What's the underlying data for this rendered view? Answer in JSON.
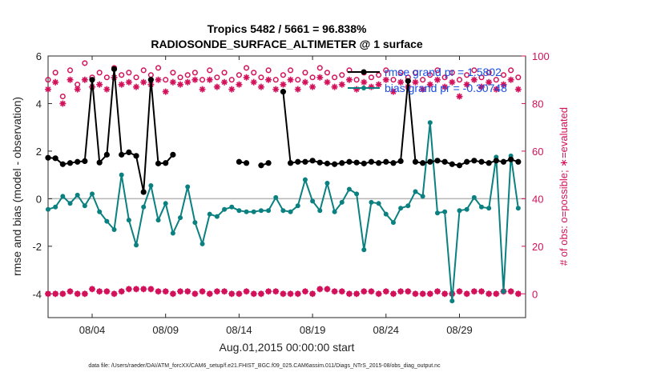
{
  "chart_data": {
    "type": "line",
    "title": "Tropics 5482 / 5661 = 96.838%",
    "subtitle": "RADIOSONDE_SURFACE_ALTIMETER @ 1 surface",
    "xlabel": "Aug.01,2015 00:00:00 start",
    "ylabel": "rmse and bias (model - observation)",
    "ylabel_right": "# of obs: o=possible; ∗=evaluated",
    "footnote": "data file: /Users/raeder/DAI/ATM_forcXX/CAM6_setup/f.e21.FHIST_BGC.f09_025.CAM6assim.011/Diags_NTrS_2015-08/obs_diag_output.nc",
    "xlim": [
      1,
      33.5
    ],
    "ylim": [
      -5,
      6
    ],
    "ylim_right": [
      -10,
      100
    ],
    "x_ticks": [
      4,
      9,
      14,
      19,
      24,
      29
    ],
    "x_tick_labels": [
      "08/04",
      "08/09",
      "08/14",
      "08/19",
      "08/24",
      "08/29"
    ],
    "y_ticks": [
      -4,
      -2,
      0,
      2,
      4,
      6
    ],
    "y_tick_labels": [
      "-4",
      "-2",
      "0",
      "2",
      "4",
      "6"
    ],
    "y_right_ticks": [
      0,
      20,
      40,
      60,
      80,
      100
    ],
    "y_right_tick_labels": [
      "0",
      "20",
      "40",
      "60",
      "80",
      "100"
    ],
    "zero_line": 0,
    "x": [
      1.0,
      1.5,
      2.0,
      2.5,
      3.0,
      3.5,
      4.0,
      4.5,
      5.0,
      5.5,
      6.0,
      6.5,
      7.0,
      7.5,
      8.0,
      8.5,
      9.0,
      9.5,
      10.0,
      10.5,
      11.0,
      11.5,
      12.0,
      12.5,
      13.0,
      13.5,
      14.0,
      14.5,
      15.0,
      15.5,
      16.0,
      16.5,
      17.0,
      17.5,
      18.0,
      18.5,
      19.0,
      19.5,
      20.0,
      20.5,
      21.0,
      21.5,
      22.0,
      22.5,
      23.0,
      23.5,
      24.0,
      24.5,
      25.0,
      25.5,
      26.0,
      26.5,
      27.0,
      27.5,
      28.0,
      28.5,
      29.0,
      29.5,
      30.0,
      30.5,
      31.0,
      31.5,
      32.0,
      32.5,
      33.0
    ],
    "series": [
      {
        "name": "rmse",
        "legend_label": "rmse grand pr = 1.5802",
        "color": "#000000",
        "values": [
          1.72,
          1.7,
          1.45,
          1.5,
          1.55,
          1.58,
          5.0,
          1.52,
          1.85,
          5.45,
          1.85,
          1.95,
          1.8,
          0.28,
          5.0,
          1.48,
          1.5,
          1.85,
          null,
          null,
          null,
          null,
          null,
          null,
          null,
          null,
          1.55,
          1.5,
          null,
          1.4,
          1.5,
          null,
          4.5,
          1.5,
          1.55,
          1.55,
          1.6,
          1.52,
          1.48,
          1.45,
          1.5,
          1.55,
          1.52,
          1.48,
          1.55,
          1.5,
          1.55,
          1.5,
          1.58,
          4.95,
          1.55,
          1.5,
          1.55,
          1.6,
          1.55,
          1.45,
          1.4,
          1.55,
          1.6,
          1.55,
          1.5,
          1.6,
          1.55,
          1.65,
          1.55
        ]
      },
      {
        "name": "bias",
        "legend_label": "bias grand pr = -0.30748",
        "color": "#0b8080",
        "values": [
          -0.45,
          -0.35,
          0.1,
          -0.2,
          0.15,
          -0.3,
          0.2,
          -0.55,
          -0.95,
          -1.3,
          1.0,
          -0.9,
          -1.95,
          -0.35,
          0.55,
          -0.9,
          -0.2,
          -1.45,
          -0.8,
          0.5,
          -1.0,
          -1.9,
          -0.65,
          -0.75,
          -0.45,
          -0.35,
          -0.5,
          -0.55,
          -0.55,
          -0.5,
          -0.5,
          0.05,
          -0.5,
          -0.55,
          -0.3,
          0.8,
          -0.1,
          -0.5,
          0.65,
          -0.55,
          -0.15,
          0.4,
          0.2,
          -2.15,
          -0.15,
          -0.2,
          -0.65,
          -1.0,
          -0.4,
          -0.3,
          0.3,
          0.1,
          3.2,
          -0.6,
          -0.55,
          -4.3,
          -0.5,
          -0.45,
          0.05,
          -0.35,
          -0.4,
          1.75,
          -3.9,
          1.8,
          -0.4
        ]
      },
      {
        "name": "obs possible",
        "legend_label": "",
        "color": "#d3105a",
        "marker": "o",
        "axis": "right",
        "values": [
          90,
          93,
          83,
          94,
          88,
          97,
          91,
          93,
          91,
          95,
          92,
          93,
          91,
          94,
          92,
          95,
          90,
          93,
          91,
          92,
          93,
          90,
          94,
          91,
          93,
          90,
          92,
          95,
          93,
          91,
          94,
          90,
          92,
          94,
          90,
          93,
          91,
          95,
          93,
          91,
          92,
          94,
          90,
          93,
          91,
          92,
          94,
          90,
          93,
          91,
          93,
          90,
          92,
          94,
          91,
          93,
          90,
          92,
          94,
          91,
          93,
          90,
          92,
          94,
          91
        ]
      },
      {
        "name": "obs evaluated",
        "legend_label": "",
        "color": "#d3105a",
        "marker": "*",
        "axis": "right",
        "values": [
          86,
          89,
          80,
          90,
          86,
          90,
          87,
          88,
          86,
          91,
          88,
          89,
          87,
          89,
          88,
          90,
          85,
          89,
          88,
          89,
          90,
          86,
          90,
          87,
          89,
          86,
          88,
          91,
          89,
          87,
          90,
          86,
          88,
          90,
          86,
          89,
          87,
          91,
          89,
          87,
          88,
          90,
          86,
          89,
          87,
          88,
          90,
          85,
          89,
          87,
          89,
          86,
          88,
          90,
          87,
          89,
          83,
          88,
          90,
          87,
          89,
          86,
          88,
          90,
          86
        ]
      },
      {
        "name": "obs possible (bottom)",
        "legend_label": "",
        "color": "#d3105a",
        "marker": "o",
        "axis": "right",
        "values": [
          0,
          0,
          0,
          1,
          0,
          0,
          2,
          1,
          1,
          0,
          1,
          2,
          2,
          2,
          2,
          1,
          1,
          0,
          1,
          1,
          0,
          1,
          0,
          1,
          1,
          0,
          0,
          1,
          0,
          0,
          1,
          1,
          0,
          0,
          0,
          1,
          0,
          2,
          2,
          1,
          1,
          0,
          0,
          1,
          1,
          0,
          1,
          0,
          1,
          1,
          0,
          0,
          0,
          1,
          0,
          0,
          1,
          0,
          1,
          1,
          0,
          0,
          1,
          1,
          0
        ]
      },
      {
        "name": "obs evaluated (bottom)",
        "legend_label": "",
        "color": "#d3105a",
        "marker": "*",
        "axis": "right",
        "values": [
          0,
          0,
          0,
          1,
          0,
          0,
          2,
          1,
          1,
          0,
          1,
          2,
          2,
          2,
          2,
          1,
          1,
          0,
          1,
          1,
          0,
          1,
          0,
          1,
          1,
          0,
          0,
          1,
          0,
          0,
          1,
          1,
          0,
          0,
          0,
          1,
          0,
          2,
          2,
          1,
          1,
          0,
          0,
          1,
          1,
          0,
          1,
          0,
          1,
          1,
          0,
          0,
          0,
          1,
          0,
          0,
          1,
          0,
          1,
          1,
          0,
          0,
          1,
          1,
          0
        ]
      }
    ],
    "legend_position": "top-right"
  }
}
